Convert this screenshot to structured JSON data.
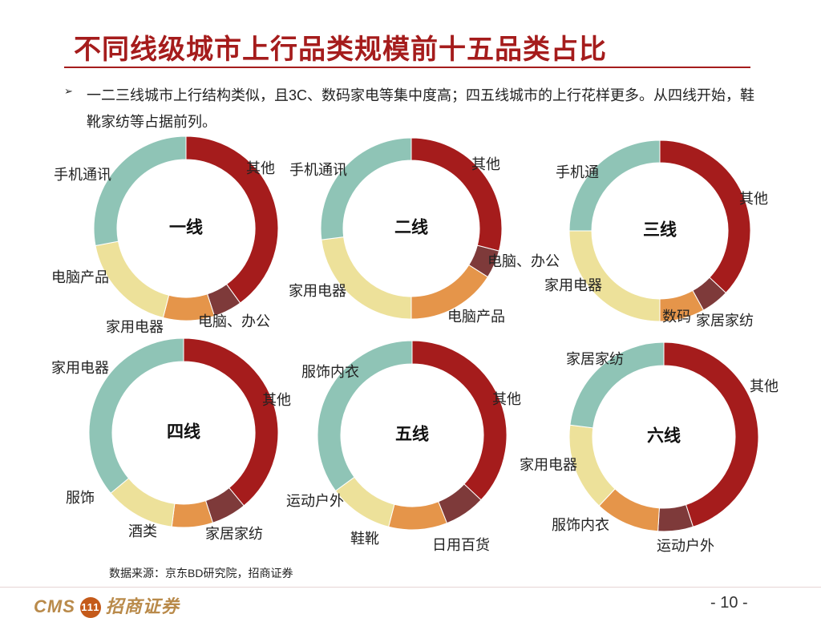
{
  "slide": {
    "title": "不同线级城市上行品类规模前十五品类占比",
    "bullet_symbol": "➢",
    "bullet_text": "一二三线城市上行结构类似，且3C、数码家电等集中度高；四五线城市的上行花样更多。从四线开始，鞋靴家纺等占据前列。",
    "source": "数据来源：京东BD研究院，招商证券",
    "page_number": "- 10 -",
    "logo_text_left": "CMS",
    "logo_mark": "111",
    "logo_text_right": "招商证券"
  },
  "colors": {
    "title": "#a51c1c",
    "slice_palette": [
      "#a51c1c",
      "#7e3a3a",
      "#e5954a",
      "#ede19a",
      "#8fc4b6"
    ]
  },
  "chart_data": [
    {
      "type": "pie",
      "donut": true,
      "center_label": "一线",
      "slices": [
        {
          "label": "其他",
          "value": 40,
          "color": "#a51c1c"
        },
        {
          "label": "电脑、办公",
          "value": 5,
          "color": "#7e3a3a"
        },
        {
          "label": "家用电器",
          "value": 9,
          "color": "#e5954a"
        },
        {
          "label": "电脑产品",
          "value": 18,
          "color": "#ede19a"
        },
        {
          "label": "手机通讯",
          "value": 28,
          "color": "#8fc4b6"
        }
      ]
    },
    {
      "type": "pie",
      "donut": true,
      "center_label": "二线",
      "slices": [
        {
          "label": "其他",
          "value": 29,
          "color": "#a51c1c"
        },
        {
          "label": "电脑、办公",
          "value": 5,
          "color": "#7e3a3a"
        },
        {
          "label": "电脑产品",
          "value": 16,
          "color": "#e5954a"
        },
        {
          "label": "家用电器",
          "value": 23,
          "color": "#ede19a"
        },
        {
          "label": "手机通讯",
          "value": 27,
          "color": "#8fc4b6"
        }
      ]
    },
    {
      "type": "pie",
      "donut": true,
      "center_label": "三线",
      "slices": [
        {
          "label": "其他",
          "value": 37,
          "color": "#a51c1c"
        },
        {
          "label": "家居家纺",
          "value": 5,
          "color": "#7e3a3a"
        },
        {
          "label": "数码",
          "value": 8,
          "color": "#e5954a"
        },
        {
          "label": "家用电器",
          "value": 25,
          "color": "#ede19a"
        },
        {
          "label": "手机通",
          "value": 25,
          "color": "#8fc4b6"
        }
      ]
    },
    {
      "type": "pie",
      "donut": true,
      "center_label": "四线",
      "slices": [
        {
          "label": "其他",
          "value": 39,
          "color": "#a51c1c"
        },
        {
          "label": "家居家纺",
          "value": 6,
          "color": "#7e3a3a"
        },
        {
          "label": "酒类",
          "value": 7,
          "color": "#e5954a"
        },
        {
          "label": "服饰",
          "value": 12,
          "color": "#ede19a"
        },
        {
          "label": "家用电器",
          "value": 36,
          "color": "#8fc4b6"
        }
      ]
    },
    {
      "type": "pie",
      "donut": true,
      "center_label": "五线",
      "slices": [
        {
          "label": "其他",
          "value": 37,
          "color": "#a51c1c"
        },
        {
          "label": "日用百货",
          "value": 7,
          "color": "#7e3a3a"
        },
        {
          "label": "鞋靴",
          "value": 10,
          "color": "#e5954a"
        },
        {
          "label": "运动户外",
          "value": 11,
          "color": "#ede19a"
        },
        {
          "label": "服饰内衣",
          "value": 35,
          "color": "#8fc4b6"
        }
      ]
    },
    {
      "type": "pie",
      "donut": true,
      "center_label": "六线",
      "slices": [
        {
          "label": "其他",
          "value": 45,
          "color": "#a51c1c"
        },
        {
          "label": "运动户外",
          "value": 6,
          "color": "#7e3a3a"
        },
        {
          "label": "服饰内衣",
          "value": 11,
          "color": "#e5954a"
        },
        {
          "label": "家用电器",
          "value": 15,
          "color": "#ede19a"
        },
        {
          "label": "家居家纺",
          "value": 23,
          "color": "#8fc4b6"
        }
      ]
    }
  ]
}
